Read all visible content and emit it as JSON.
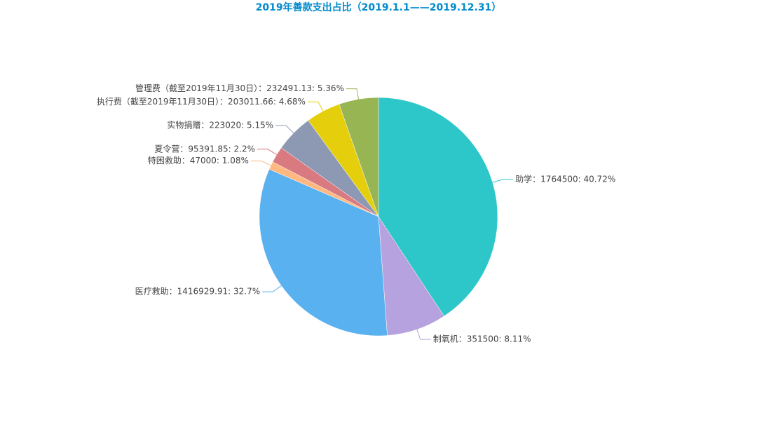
{
  "chart_data": {
    "type": "pie",
    "title": "2019年善款支出占比（2019.1.1——2019.12.31）",
    "labels": [
      "助学：1764500: 40.72%",
      "制氧机：351500: 8.11%",
      "医疗救助：1416929.91: 32.7%",
      "特困救助：47000: 1.08%",
      "夏令营：95391.85: 2.2%",
      "实物捐赠：223020: 5.15%",
      "执行费（截至2019年11月30日）：203011.66: 4.68%",
      "管理费（截至2019年11月30日）：232491.13: 5.36%"
    ],
    "values": [
      1764500,
      351500,
      1416929.91,
      47000,
      95391.85,
      223020,
      203011.66,
      232491.13
    ],
    "colors": [
      "#2ec7c9",
      "#b6a2de",
      "#5ab1ef",
      "#ffb980",
      "#d87a80",
      "#8d98b3",
      "#e5cf0d",
      "#97b552"
    ]
  }
}
